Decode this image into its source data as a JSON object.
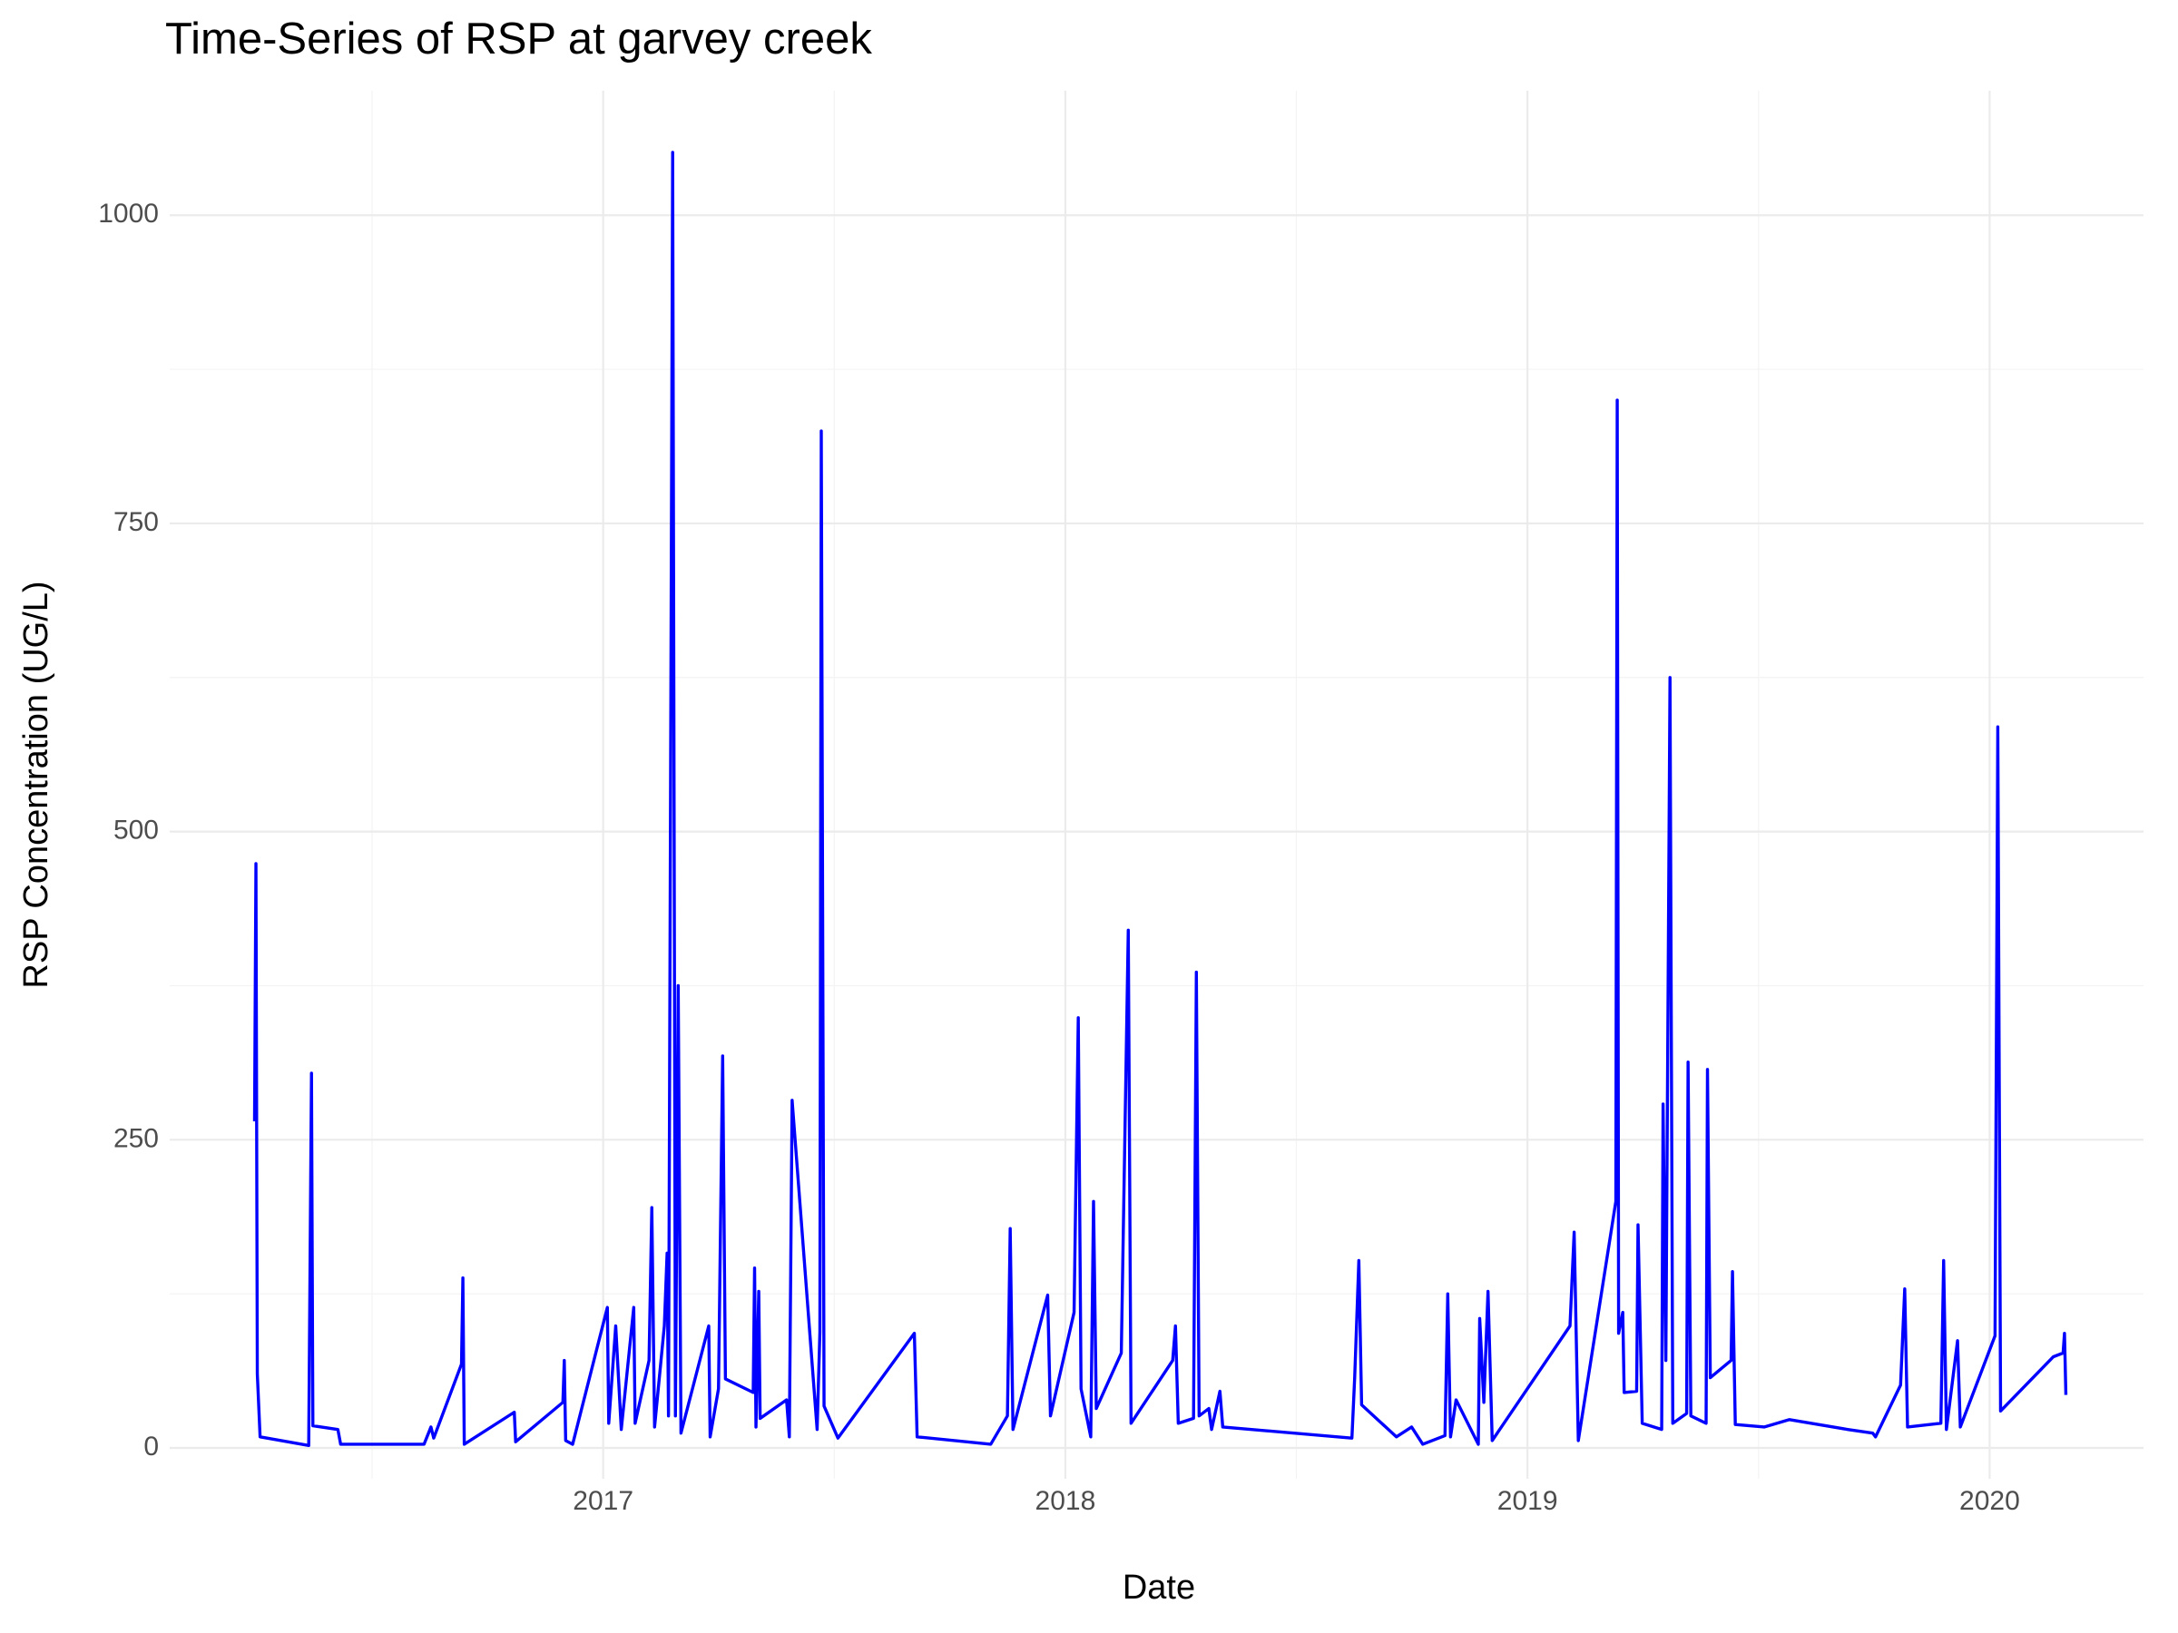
{
  "chart_data": {
    "type": "line",
    "title": "Time-Series of RSP at garvey creek",
    "x_label": "Date",
    "y_label": "RSP Concentration (UG/L)",
    "xlim": [
      2016.062,
      2020.333
    ],
    "ylim": [
      -25,
      1101
    ],
    "xticks": [
      2017,
      2018,
      2019,
      2020
    ],
    "yticks": [
      0,
      250,
      500,
      750,
      1000
    ],
    "x_minor_ticks": [
      2016.5,
      2017.5,
      2018.5,
      2019.5
    ],
    "y_minor_ticks": [
      125,
      375,
      625,
      875
    ],
    "grid": true,
    "series": [
      {
        "name": "RSP",
        "color": "#0000ff",
        "x": [
          2016.2456,
          2016.2486,
          2016.2516,
          2016.2576,
          2016.3628,
          2016.3688,
          2016.3718,
          2016.4259,
          2016.4319,
          2016.6123,
          2016.6273,
          2016.6333,
          2016.6934,
          2016.6964,
          2016.6994,
          2016.8076,
          2016.8106,
          2016.9128,
          2016.9158,
          2016.9188,
          2016.9339,
          2017.009,
          2017.012,
          2017.0271,
          2017.0391,
          2017.0661,
          2017.0691,
          2017.0992,
          2017.1052,
          2017.1112,
          2017.1323,
          2017.1383,
          2017.1413,
          2017.1503,
          2017.1563,
          2017.1623,
          2017.1683,
          2017.2284,
          2017.2314,
          2017.2495,
          2017.2585,
          2017.2645,
          2017.3246,
          2017.3276,
          2017.3306,
          2017.3366,
          2017.3396,
          2017.3968,
          2017.4028,
          2017.4088,
          2017.4629,
          2017.4689,
          2017.4719,
          2017.4779,
          2017.508,
          2017.6733,
          2017.6793,
          2017.8386,
          2017.8747,
          2017.8807,
          2017.8867,
          2017.9618,
          2017.9678,
          2018.0189,
          2018.028,
          2018.034,
          2018.055,
          2018.061,
          2018.067,
          2018.1211,
          2018.1362,
          2018.1422,
          2018.2323,
          2018.2383,
          2018.2444,
          2018.2774,
          2018.2835,
          2018.2895,
          2018.3105,
          2018.3165,
          2018.3345,
          2018.3406,
          2018.6201,
          2018.6261,
          2018.6351,
          2018.6411,
          2018.7163,
          2018.7493,
          2018.7734,
          2018.8215,
          2018.8275,
          2018.8335,
          2018.8455,
          2018.8936,
          2018.8966,
          2018.9056,
          2018.9146,
          2018.9237,
          2019.092,
          2019.101,
          2019.11,
          2019.1912,
          2019.1942,
          2019.1972,
          2019.2062,
          2019.2092,
          2019.2362,
          2019.2392,
          2019.2483,
          2019.2904,
          2019.2934,
          2019.2994,
          2019.3084,
          2019.3144,
          2019.3444,
          2019.3475,
          2019.3535,
          2019.3865,
          2019.3895,
          2019.3956,
          2019.4406,
          2019.4436,
          2019.4497,
          2019.5128,
          2019.5669,
          2019.6931,
          2019.7472,
          2019.7532,
          2019.8073,
          2019.8163,
          2019.8224,
          2019.8945,
          2019.9005,
          2019.9065,
          2019.9306,
          2019.9366,
          2020.0117,
          2020.0177,
          2020.0237,
          2020.138,
          2020.159,
          2020.162,
          2020.165
        ],
        "values": [
          265,
          474,
          60,
          9,
          2,
          304,
          18,
          15,
          3,
          3,
          17,
          8,
          68,
          138,
          3,
          29,
          5,
          37,
          71,
          6,
          3,
          114,
          20,
          99,
          15,
          114,
          20,
          71,
          195,
          17,
          99,
          158,
          26,
          1051,
          26,
          375,
          12,
          99,
          9,
          48,
          318,
          56,
          45,
          146,
          17,
          127,
          24,
          39,
          9,
          282,
          15,
          94,
          825,
          34,
          8,
          93,
          9,
          3,
          26,
          178,
          15,
          124,
          26,
          110,
          349,
          48,
          9,
          200,
          32,
          77,
          420,
          20,
          71,
          99,
          20,
          24,
          386,
          26,
          32,
          15,
          46,
          17,
          8,
          57,
          152,
          35,
          9,
          17,
          3,
          10,
          125,
          9,
          39,
          3,
          105,
          37,
          127,
          6,
          99,
          175,
          6,
          200,
          850,
          93,
          110,
          45,
          46,
          181,
          20,
          15,
          279,
          71,
          625,
          20,
          28,
          313,
          26,
          20,
          307,
          57,
          71,
          143,
          19,
          17,
          23,
          15,
          12,
          9,
          51,
          129,
          17,
          20,
          152,
          15,
          87,
          17,
          91,
          585,
          30,
          74,
          77,
          93,
          43
        ]
      }
    ]
  }
}
